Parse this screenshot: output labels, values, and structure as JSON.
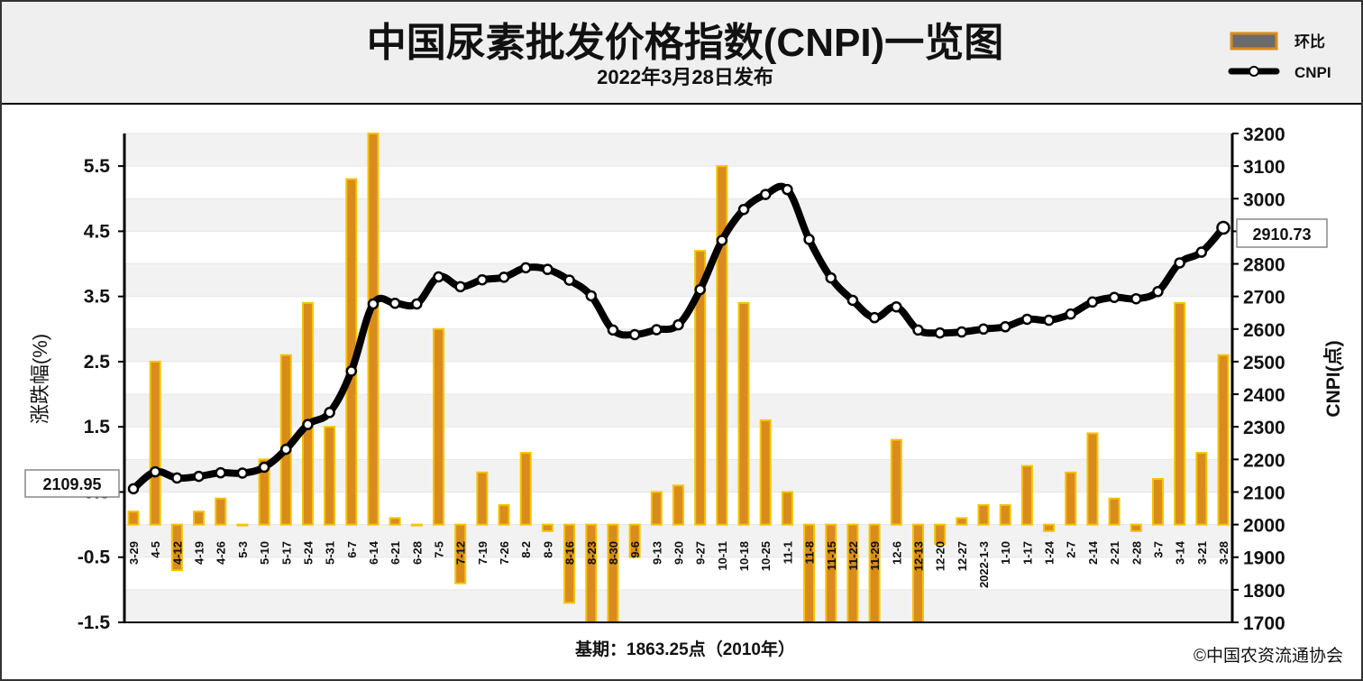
{
  "title": "中国尿素批发价格指数(CNPI)一览图",
  "subtitle": "2022年3月28日发布",
  "legend": {
    "bar_label": "环比",
    "line_label": "CNPI"
  },
  "base_note": "基期：1863.25点（2010年）",
  "copyright": "©中国农资流通协会",
  "first_value_label": "2109.95",
  "last_value_label": "2910.73",
  "colors": {
    "bar_fill": "#d98b1e",
    "bar_stroke": "#f5c400",
    "line": "#000000",
    "marker_fill": "#ffffff",
    "header_bg": "#efefef",
    "grid": "#e6e6e6"
  },
  "chart_data": {
    "type": "bar+line",
    "categories": [
      "3-29",
      "4-5",
      "4-12",
      "4-19",
      "4-26",
      "5-3",
      "5-10",
      "5-17",
      "5-24",
      "5-31",
      "6-7",
      "6-14",
      "6-21",
      "6-28",
      "7-5",
      "7-12",
      "7-19",
      "7-26",
      "8-2",
      "8-9",
      "8-16",
      "8-23",
      "8-30",
      "9-6",
      "9-13",
      "9-20",
      "9-27",
      "10-11",
      "10-18",
      "10-25",
      "11-1",
      "11-8",
      "11-15",
      "11-22",
      "11-29",
      "12-6",
      "12-13",
      "12-20",
      "12-27",
      "2022-1-3",
      "1-10",
      "1-17",
      "1-24",
      "2-7",
      "2-14",
      "2-21",
      "2-28",
      "3-7",
      "3-14",
      "3-21",
      "3-28"
    ],
    "series": [
      {
        "name": "环比",
        "axis": "left",
        "values": [
          0.2,
          2.5,
          -0.7,
          0.2,
          0.4,
          0.0,
          1.0,
          2.6,
          3.4,
          1.5,
          5.3,
          6.0,
          0.1,
          0.0,
          3.0,
          -0.9,
          0.8,
          0.3,
          1.1,
          -0.1,
          -1.2,
          -1.6,
          -2.4,
          -0.5,
          0.5,
          0.6,
          4.2,
          5.5,
          3.4,
          1.6,
          0.5,
          -1.8,
          -1.9,
          -1.7,
          -2.6,
          1.3,
          -1.6,
          -0.3,
          0.1,
          0.3,
          0.3,
          0.9,
          -0.1,
          0.8,
          1.4,
          0.4,
          -0.1,
          0.7,
          3.4,
          1.1,
          2.6
        ]
      },
      {
        "name": "CNPI",
        "axis": "right",
        "values": [
          2109.95,
          2162,
          2143,
          2148,
          2159,
          2158,
          2176,
          2231,
          2307,
          2344,
          2471,
          2677,
          2679,
          2677,
          2760,
          2730,
          2751,
          2759,
          2788,
          2783,
          2750,
          2702,
          2597,
          2583,
          2598,
          2613,
          2721,
          2872,
          2967,
          3013,
          3028,
          2875,
          2757,
          2688,
          2635,
          2668,
          2597,
          2588,
          2591,
          2600,
          2607,
          2630,
          2627,
          2646,
          2683,
          2697,
          2693,
          2715,
          2803,
          2836,
          2910.73
        ]
      }
    ],
    "ylabel_left": "涨跌幅(%)",
    "ylabel_right": "CNPI(点)",
    "ylim_left": [
      -1.5,
      6.0
    ],
    "yticks_left": [
      "5.5",
      "4.5",
      "3.5",
      "2.5",
      "1.5",
      "0.5",
      "-0.5",
      "-1.5"
    ],
    "ylim_right": [
      1700,
      3200
    ],
    "yticks_right": [
      "3200",
      "3100",
      "3000",
      "2900",
      "2800",
      "2700",
      "2600",
      "2500",
      "2400",
      "2300",
      "2200",
      "2100",
      "2000",
      "1900",
      "1800",
      "1700"
    ],
    "grid": true,
    "legend_position": "top-right"
  }
}
